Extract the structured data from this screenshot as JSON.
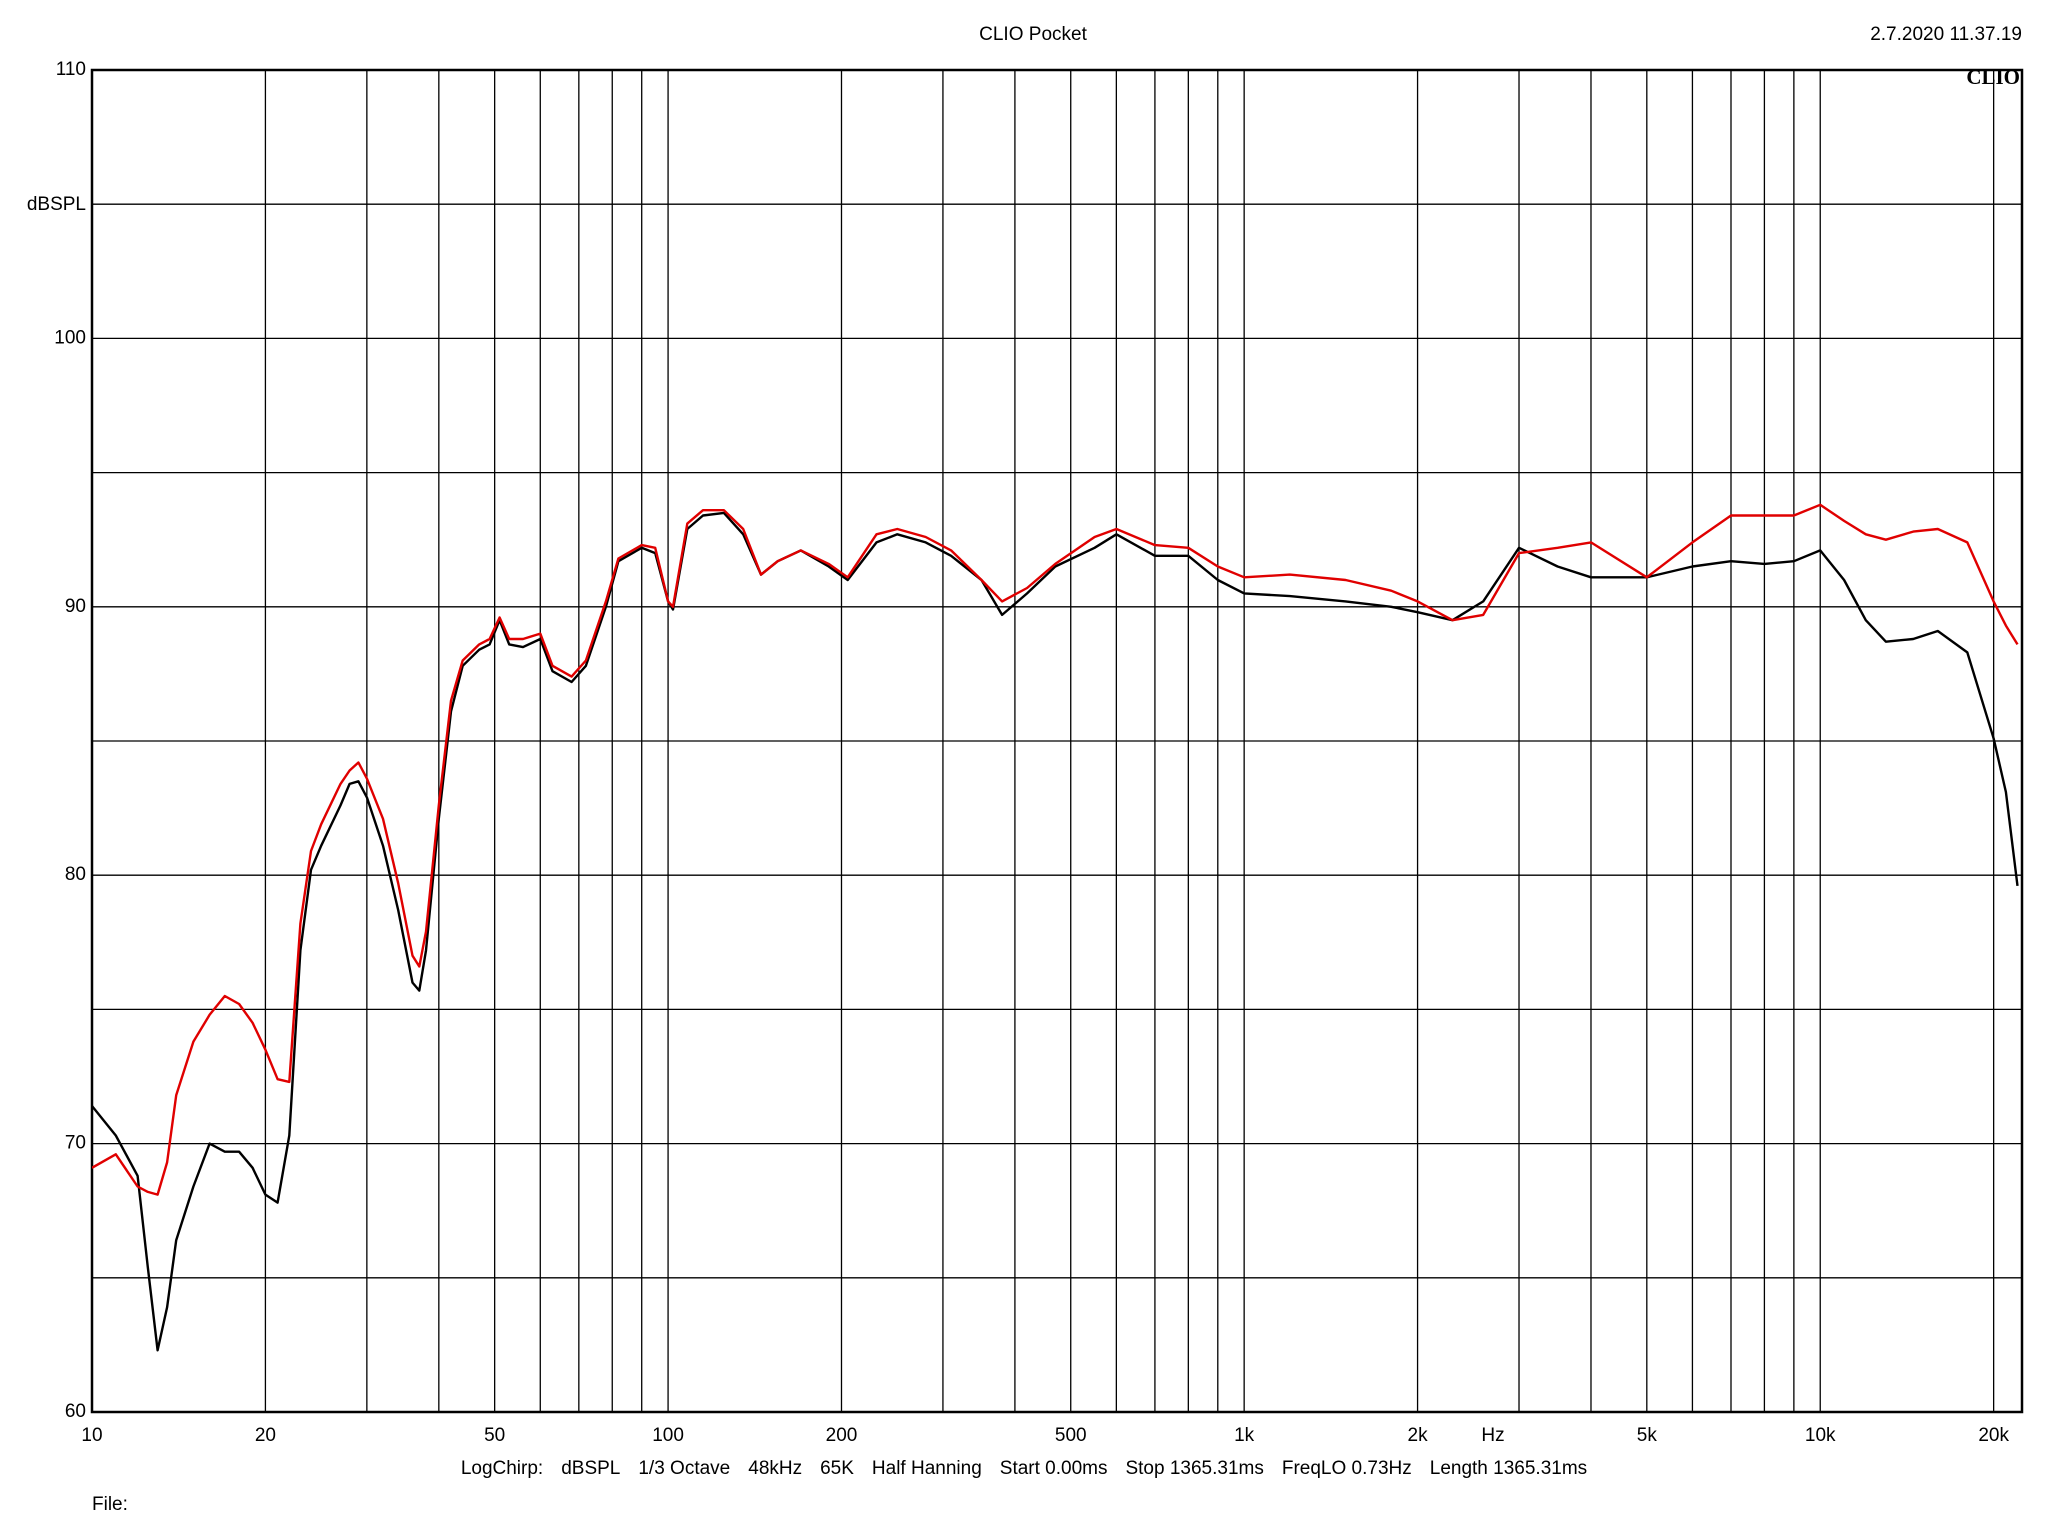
{
  "chart_data": {
    "type": "line",
    "title": "CLIO Pocket",
    "timestamp": "2.7.2020 11.37.19",
    "logo": "CLIO",
    "ylabel": "dBSPL",
    "xlabel": "Hz",
    "footer": [
      "LogChirp:",
      "dBSPL",
      "1/3 Octave",
      "48kHz",
      "65K",
      "Half Hanning",
      "Start 0.00ms",
      "Stop 1365.31ms",
      "FreqLO 0.73Hz",
      "Length 1365.31ms"
    ],
    "file_label": "File:",
    "xscale": "log",
    "xlim": [
      10,
      22400
    ],
    "ylim": [
      60,
      110
    ],
    "yticks": [
      60,
      70,
      80,
      90,
      100,
      110
    ],
    "yminor": [
      65,
      75,
      85,
      95,
      105
    ],
    "xticks": [
      10,
      20,
      50,
      100,
      200,
      500,
      {
        "value": 1000,
        "label": "1k"
      },
      {
        "value": 2000,
        "label": "2k"
      },
      {
        "value": 5000,
        "label": "5k"
      },
      {
        "value": 10000,
        "label": "10k"
      },
      {
        "value": 20000,
        "label": "20k"
      }
    ],
    "xgrid": [
      10,
      20,
      30,
      40,
      50,
      60,
      70,
      80,
      90,
      100,
      200,
      300,
      400,
      500,
      600,
      700,
      800,
      900,
      1000,
      2000,
      3000,
      4000,
      5000,
      6000,
      7000,
      8000,
      9000,
      10000,
      20000
    ],
    "grid": true,
    "x": [
      10,
      11,
      12,
      12.5,
      13,
      13.5,
      14,
      15,
      16,
      17,
      18,
      19,
      20,
      21,
      22,
      23,
      24,
      25,
      27,
      28,
      29,
      30,
      32,
      34,
      36,
      37,
      38,
      40,
      42,
      44,
      47,
      49,
      51,
      53,
      56,
      60,
      63,
      68,
      72,
      78,
      82,
      90,
      95,
      100,
      102,
      108,
      115,
      125,
      135,
      145,
      155,
      170,
      190,
      205,
      230,
      250,
      280,
      310,
      350,
      380,
      420,
      470,
      550,
      600,
      700,
      800,
      900,
      1000,
      1200,
      1500,
      1800,
      2000,
      2300,
      2600,
      3000,
      3500,
      4000,
      5000,
      6000,
      7000,
      8000,
      9000,
      10000,
      11000,
      12000,
      13000,
      14500,
      16000,
      18000,
      20000,
      21000,
      22000
    ],
    "series": [
      {
        "color": "#000000",
        "values": [
          71.4,
          70.3,
          68.8,
          65.4,
          62.3,
          63.9,
          66.4,
          68.4,
          70.0,
          69.7,
          69.7,
          69.1,
          68.1,
          67.8,
          70.3,
          77.2,
          80.2,
          81.1,
          82.6,
          83.4,
          83.5,
          82.9,
          81.1,
          78.7,
          76.0,
          75.7,
          77.2,
          82.1,
          86.1,
          87.8,
          88.4,
          88.6,
          89.5,
          88.6,
          88.5,
          88.8,
          87.6,
          87.2,
          87.8,
          90.0,
          91.7,
          92.2,
          92.0,
          90.2,
          89.9,
          92.9,
          93.4,
          93.5,
          92.7,
          91.2,
          91.7,
          92.1,
          91.5,
          91.0,
          92.4,
          92.7,
          92.4,
          91.9,
          91.0,
          89.7,
          90.5,
          91.5,
          92.2,
          92.7,
          91.9,
          91.9,
          91.0,
          90.5,
          90.4,
          90.2,
          90.0,
          89.8,
          89.5,
          90.2,
          92.2,
          91.5,
          91.1,
          91.1,
          91.5,
          91.7,
          91.6,
          91.7,
          92.1,
          91.0,
          89.5,
          88.7,
          88.8,
          89.1,
          88.3,
          85.1,
          83.1,
          79.6
        ]
      },
      {
        "color": "#e00000",
        "values": [
          69.1,
          69.6,
          68.4,
          68.2,
          68.1,
          69.3,
          71.8,
          73.8,
          74.8,
          75.5,
          75.2,
          74.5,
          73.5,
          72.4,
          72.3,
          78.2,
          80.9,
          81.9,
          83.4,
          83.9,
          84.2,
          83.6,
          82.1,
          79.7,
          77.0,
          76.6,
          77.9,
          82.6,
          86.5,
          88.0,
          88.6,
          88.8,
          89.6,
          88.8,
          88.8,
          89.0,
          87.8,
          87.4,
          88.0,
          90.2,
          91.8,
          92.3,
          92.2,
          90.2,
          90.0,
          93.1,
          93.6,
          93.6,
          92.9,
          91.2,
          91.7,
          92.1,
          91.6,
          91.1,
          92.7,
          92.9,
          92.6,
          92.1,
          91.0,
          90.2,
          90.7,
          91.6,
          92.6,
          92.9,
          92.3,
          92.2,
          91.5,
          91.1,
          91.2,
          91.0,
          90.6,
          90.2,
          89.5,
          89.7,
          92.0,
          92.2,
          92.4,
          91.1,
          92.4,
          93.4,
          93.4,
          93.4,
          93.8,
          93.2,
          92.7,
          92.5,
          92.8,
          92.9,
          92.4,
          90.2,
          89.3,
          88.6
        ]
      }
    ]
  }
}
